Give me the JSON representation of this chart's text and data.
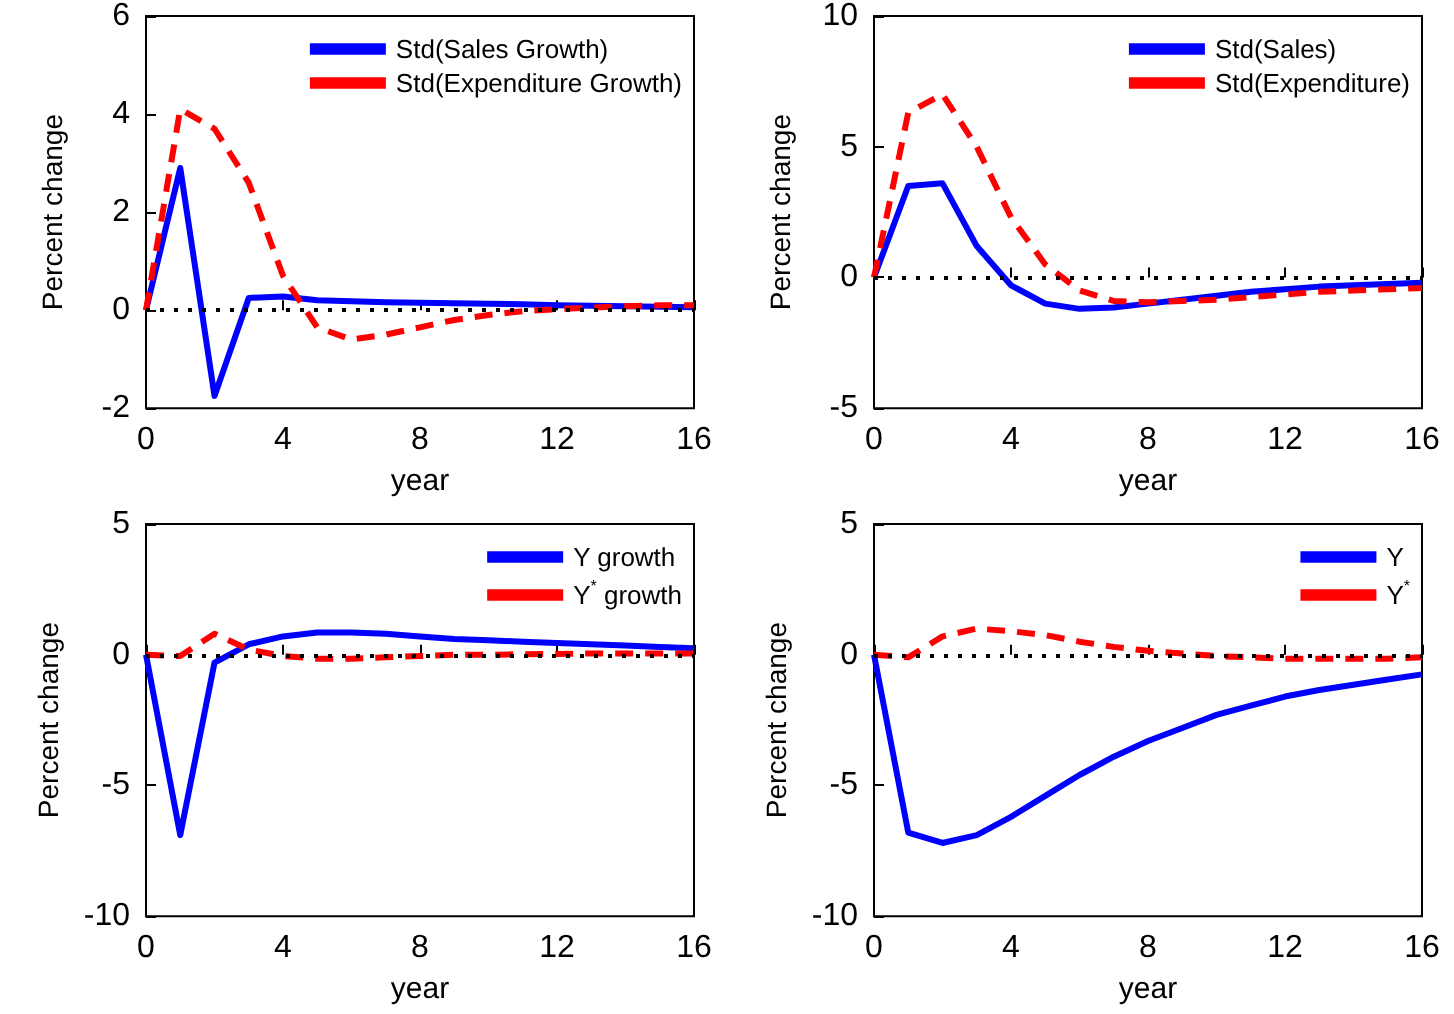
{
  "chart_data": [
    {
      "type": "line",
      "xlabel": "year",
      "ylabel": "Percent change",
      "x": [
        0,
        1,
        2,
        3,
        4,
        5,
        6,
        7,
        8,
        9,
        10,
        11,
        12,
        13,
        14,
        15,
        16
      ],
      "xlim": [
        0,
        16
      ],
      "xticks": [
        0,
        4,
        8,
        12,
        16
      ],
      "ylim": [
        -2,
        6
      ],
      "yticks": [
        -2,
        0,
        2,
        4,
        6
      ],
      "legend": "top right",
      "marker": "none",
      "grid": false,
      "series": [
        {
          "name": "Std(Sales Growth)",
          "color": "#0000ff",
          "line_style": "solid",
          "values": [
            0,
            2.9,
            -1.75,
            0.25,
            0.28,
            0.2,
            0.18,
            0.16,
            0.15,
            0.14,
            0.13,
            0.12,
            0.1,
            0.09,
            0.08,
            0.07,
            0.06
          ]
        },
        {
          "name": "Std(Expenditure Growth)",
          "color": "#ff0000",
          "line_style": "dashed",
          "values": [
            0,
            4.1,
            3.7,
            2.6,
            0.7,
            -0.35,
            -0.6,
            -0.5,
            -0.35,
            -0.2,
            -0.1,
            -0.02,
            0.02,
            0.05,
            0.08,
            0.1,
            0.1
          ]
        }
      ],
      "ref_lines": [
        {
          "axis": "y",
          "value": 0,
          "color": "#000000",
          "line_style": "dotted"
        }
      ]
    },
    {
      "type": "line",
      "xlabel": "year",
      "ylabel": "Percent change",
      "x": [
        0,
        1,
        2,
        3,
        4,
        5,
        6,
        7,
        8,
        9,
        10,
        11,
        12,
        13,
        14,
        15,
        16
      ],
      "xlim": [
        0,
        16
      ],
      "xticks": [
        0,
        4,
        8,
        12,
        16
      ],
      "ylim": [
        -5,
        10
      ],
      "yticks": [
        -5,
        0,
        5,
        10
      ],
      "legend": "top right",
      "marker": "none",
      "grid": false,
      "series": [
        {
          "name": "Std(Sales)",
          "color": "#0000ff",
          "line_style": "solid",
          "values": [
            0,
            3.5,
            3.6,
            1.2,
            -0.3,
            -1.0,
            -1.2,
            -1.15,
            -1.0,
            -0.85,
            -0.7,
            -0.55,
            -0.45,
            -0.35,
            -0.3,
            -0.25,
            -0.2
          ]
        },
        {
          "name": "Std(Expenditure)",
          "color": "#ff0000",
          "line_style": "dashed",
          "values": [
            0,
            6.3,
            7.0,
            5.0,
            2.3,
            0.5,
            -0.5,
            -0.9,
            -0.95,
            -0.9,
            -0.85,
            -0.75,
            -0.65,
            -0.55,
            -0.5,
            -0.45,
            -0.4
          ]
        }
      ],
      "ref_lines": [
        {
          "axis": "y",
          "value": 0,
          "color": "#000000",
          "line_style": "dotted"
        }
      ]
    },
    {
      "type": "line",
      "xlabel": "year",
      "ylabel": "Percent change",
      "x": [
        0,
        1,
        2,
        3,
        4,
        5,
        6,
        7,
        8,
        9,
        10,
        11,
        12,
        13,
        14,
        15,
        16
      ],
      "xlim": [
        0,
        16
      ],
      "xticks": [
        0,
        4,
        8,
        12,
        16
      ],
      "ylim": [
        -10,
        5
      ],
      "yticks": [
        -10,
        -5,
        0,
        5
      ],
      "legend": "top right",
      "marker": "none",
      "grid": false,
      "series": [
        {
          "name": "Y growth",
          "color": "#0000ff",
          "line_style": "solid",
          "values": [
            0,
            -6.9,
            -0.3,
            0.4,
            0.7,
            0.85,
            0.85,
            0.8,
            0.7,
            0.6,
            0.55,
            0.5,
            0.45,
            0.4,
            0.35,
            0.3,
            0.25
          ]
        },
        {
          "name": "Y$^{*}$ growth",
          "color": "#ff0000",
          "line_style": "dashed",
          "values": [
            0,
            -0.05,
            0.8,
            0.2,
            -0.05,
            -0.15,
            -0.15,
            -0.1,
            -0.05,
            0,
            0,
            0.02,
            0.03,
            0.05,
            0.05,
            0.05,
            0.05
          ]
        }
      ],
      "ref_lines": [
        {
          "axis": "y",
          "value": 0,
          "color": "#000000",
          "line_style": "dotted"
        }
      ]
    },
    {
      "type": "line",
      "xlabel": "year",
      "ylabel": "Percent change",
      "x": [
        0,
        1,
        2,
        3,
        4,
        5,
        6,
        7,
        8,
        9,
        10,
        11,
        12,
        13,
        14,
        15,
        16
      ],
      "xlim": [
        0,
        16
      ],
      "xticks": [
        0,
        4,
        8,
        12,
        16
      ],
      "ylim": [
        -10,
        5
      ],
      "yticks": [
        -10,
        -5,
        0,
        5
      ],
      "legend": "top right",
      "marker": "none",
      "grid": false,
      "series": [
        {
          "name": "Y",
          "color": "#0000ff",
          "line_style": "solid",
          "values": [
            0,
            -6.8,
            -7.2,
            -6.9,
            -6.2,
            -5.4,
            -4.6,
            -3.9,
            -3.3,
            -2.8,
            -2.3,
            -1.95,
            -1.6,
            -1.35,
            -1.15,
            -0.95,
            -0.75
          ]
        },
        {
          "name": "Y$^{*}$",
          "color": "#ff0000",
          "line_style": "dashed",
          "values": [
            0,
            -0.1,
            0.7,
            1.0,
            0.9,
            0.75,
            0.5,
            0.3,
            0.15,
            0.05,
            -0.05,
            -0.1,
            -0.15,
            -0.15,
            -0.15,
            -0.15,
            -0.1
          ]
        }
      ],
      "ref_lines": [
        {
          "axis": "y",
          "value": 0,
          "color": "#000000",
          "line_style": "dotted"
        }
      ]
    }
  ]
}
